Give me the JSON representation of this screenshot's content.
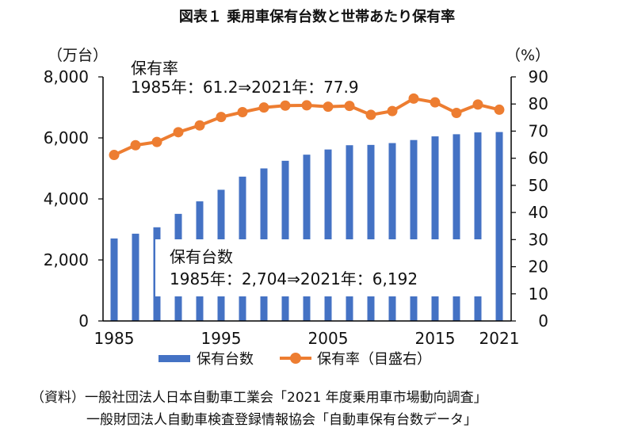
{
  "chart_data": {
    "type": "bar+line",
    "title": "図表１ 乗用車保有台数と世帯あたり保有率",
    "y_left_unit": "（万台）",
    "y_right_unit": "（%）",
    "y_left_range": [
      0,
      8000
    ],
    "y_left_ticks": [
      "0",
      "2,000",
      "4,000",
      "6,000",
      "8,000"
    ],
    "y_right_range": [
      0,
      90
    ],
    "y_right_ticks": [
      "0",
      "10",
      "20",
      "30",
      "40",
      "50",
      "60",
      "70",
      "80",
      "90"
    ],
    "x_tick_labels": [
      "1985",
      "1995",
      "2005",
      "2015",
      "2021"
    ],
    "years": [
      1985,
      1987,
      1989,
      1991,
      1993,
      1995,
      1997,
      1999,
      2001,
      2003,
      2005,
      2007,
      2009,
      2011,
      2013,
      2015,
      2017,
      2019,
      2021
    ],
    "series": [
      {
        "name": "保有台数",
        "type": "bar",
        "axis": "left",
        "color": "#4472C4",
        "values": [
          2704,
          2860,
          3070,
          3510,
          3920,
          4300,
          4730,
          5000,
          5250,
          5450,
          5620,
          5760,
          5770,
          5830,
          5930,
          6050,
          6120,
          6180,
          6192
        ]
      },
      {
        "name": "保有率（目盛右）",
        "type": "line",
        "axis": "right",
        "color": "#ED7D31",
        "values": [
          61.2,
          64.8,
          66.0,
          69.6,
          72.1,
          75.2,
          77.0,
          78.7,
          79.4,
          79.5,
          79.0,
          79.3,
          76.0,
          77.4,
          82.0,
          80.6,
          76.7,
          79.8,
          77.9
        ]
      }
    ],
    "annotations": [
      {
        "lines": [
          "保有率",
          "1985年：61.2⇒2021年：77.9"
        ]
      },
      {
        "lines": [
          "保有台数",
          "1985年：2,704⇒2021年：6,192"
        ]
      }
    ],
    "legend": [
      "保有台数",
      "保有率（目盛右）"
    ]
  },
  "source": {
    "line1": "（資料）一般社団法人日本自動車工業会「2021 年度乗用車市場動向調査」",
    "line2": "一般財団法人自動車検査登録情報協会「自動車保有台数データ」"
  }
}
